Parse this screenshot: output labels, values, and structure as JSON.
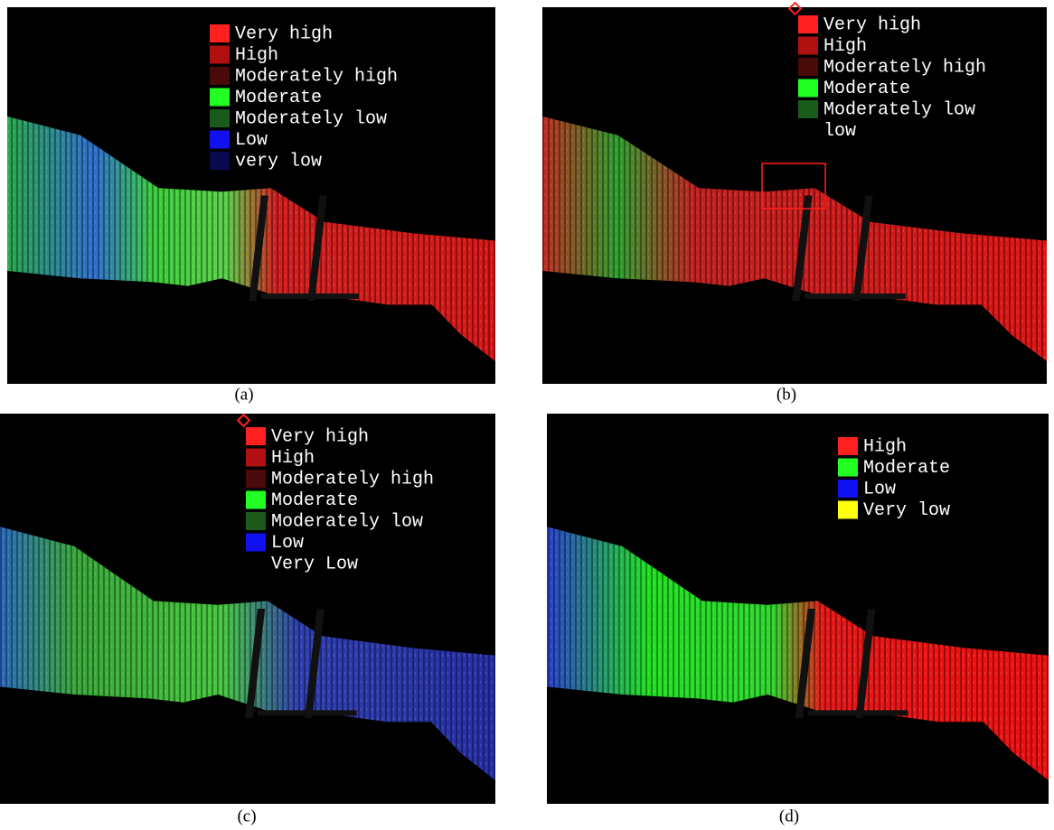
{
  "panels": [
    {
      "caption": "(a)",
      "legend": [
        {
          "label": "Very high",
          "color": "#ff2020"
        },
        {
          "label": "High",
          "color": "#b01010"
        },
        {
          "label": "Moderately high",
          "color": "#4a0a0a"
        },
        {
          "label": "Moderate",
          "color": "#22ff22"
        },
        {
          "label": "Moderately low",
          "color": "#1a5a1a"
        },
        {
          "label": "Low",
          "color": "#1010f0"
        },
        {
          "label": "very low",
          "color": "#0a0a50"
        }
      ]
    },
    {
      "caption": "(b)",
      "legend": [
        {
          "label": "Very high",
          "color": "#ff2020"
        },
        {
          "label": "High",
          "color": "#b01010"
        },
        {
          "label": "Moderately high",
          "color": "#4a0a0a"
        },
        {
          "label": "Moderate",
          "color": "#22ff22"
        },
        {
          "label": "Moderately low",
          "color": "#1a5a1a"
        },
        {
          "label": "low"
        }
      ]
    },
    {
      "caption": "(c)",
      "legend": [
        {
          "label": "Very high",
          "color": "#ff2020"
        },
        {
          "label": "High",
          "color": "#b01010"
        },
        {
          "label": "Moderately high",
          "color": "#4a0a0a"
        },
        {
          "label": "Moderate",
          "color": "#22ff22"
        },
        {
          "label": "Moderately low",
          "color": "#1a5a1a"
        },
        {
          "label": "Low",
          "color": "#1010f0"
        },
        {
          "label": "Very Low"
        }
      ]
    },
    {
      "caption": "(d)",
      "legend": [
        {
          "label": "High",
          "color": "#ff2020"
        },
        {
          "label": "Moderate",
          "color": "#22ff22"
        },
        {
          "label": "Low",
          "color": "#1010f0"
        },
        {
          "label": "Very low",
          "color": "#ffff10"
        }
      ]
    }
  ]
}
